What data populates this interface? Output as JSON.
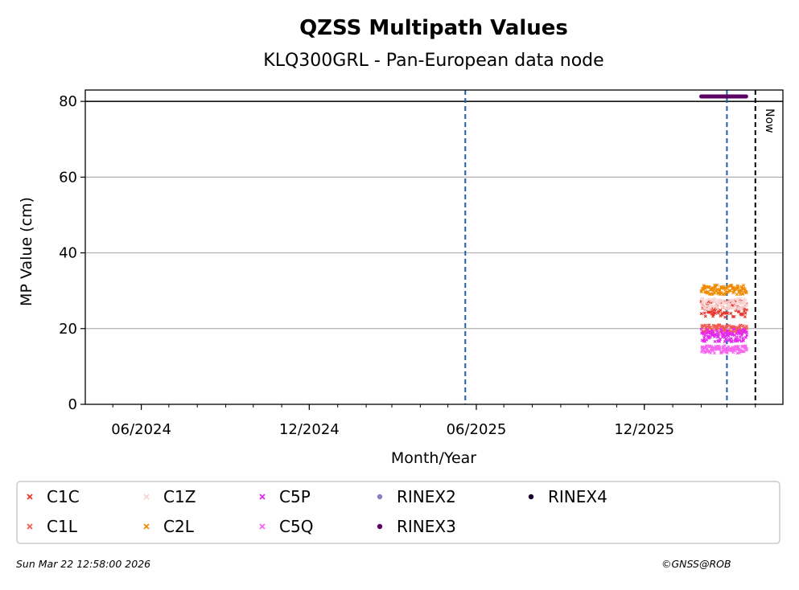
{
  "footer": {
    "timestamp": "Sun Mar 22 12:58:00 2026",
    "copyright": "©GNSS@ROB"
  },
  "chart_data": {
    "type": "scatter",
    "title": "QZSS Multipath Values",
    "subtitle": "KLQ300GRL - Pan-European data node",
    "xlabel": "Month/Year",
    "ylabel": "MP Value (cm)",
    "xlim": [
      "2024-04-01",
      "2026-05-01"
    ],
    "ylim": [
      0,
      83
    ],
    "yticks": [
      0,
      20,
      40,
      60,
      80
    ],
    "xticks": [
      {
        "label": "06/2024",
        "date": "2024-06-01"
      },
      {
        "label": "12/2024",
        "date": "2024-12-01"
      },
      {
        "label": "06/2025",
        "date": "2025-06-01"
      },
      {
        "label": "12/2025",
        "date": "2025-12-01"
      }
    ],
    "grid": "horizontal",
    "threshold_line": 80,
    "vertical_events": [
      {
        "date": "2025-05-20",
        "style": "dashed",
        "color": "#1f5fa8"
      },
      {
        "date": "2026-03-01",
        "style": "dashed",
        "color": "#1f5fa8"
      },
      {
        "date": "2026-04-01",
        "style": "dashed",
        "color": "#000000",
        "label": "Now"
      }
    ],
    "date_range": [
      "2026-02-01",
      "2026-03-22"
    ],
    "series": [
      {
        "name": "C1C",
        "color": "#e8352b",
        "marker": "x",
        "values_range": [
          23,
          27.5
        ]
      },
      {
        "name": "C1L",
        "color": "#f25a50",
        "marker": "x",
        "values_range": [
          19,
          21
        ]
      },
      {
        "name": "C1Z",
        "color": "#f8d4d2",
        "marker": "x",
        "values_range": [
          25,
          28
        ]
      },
      {
        "name": "C2L",
        "color": "#f08a00",
        "marker": "x",
        "values_range": [
          29,
          31.5
        ]
      },
      {
        "name": "C5P",
        "color": "#e526f0",
        "marker": "x",
        "values_range": [
          16.5,
          20
        ]
      },
      {
        "name": "C5Q",
        "color": "#f765f0",
        "marker": "x",
        "values_range": [
          13.5,
          15.5
        ]
      },
      {
        "name": "RINEX2",
        "color": "#8c7cc0",
        "marker": "o",
        "values_range": null
      },
      {
        "name": "RINEX3",
        "color": "#5e0063",
        "marker": "o",
        "values_range": [
          81.3,
          81.3
        ]
      },
      {
        "name": "RINEX4",
        "color": "#1a0030",
        "marker": "o",
        "values_range": null
      }
    ]
  }
}
